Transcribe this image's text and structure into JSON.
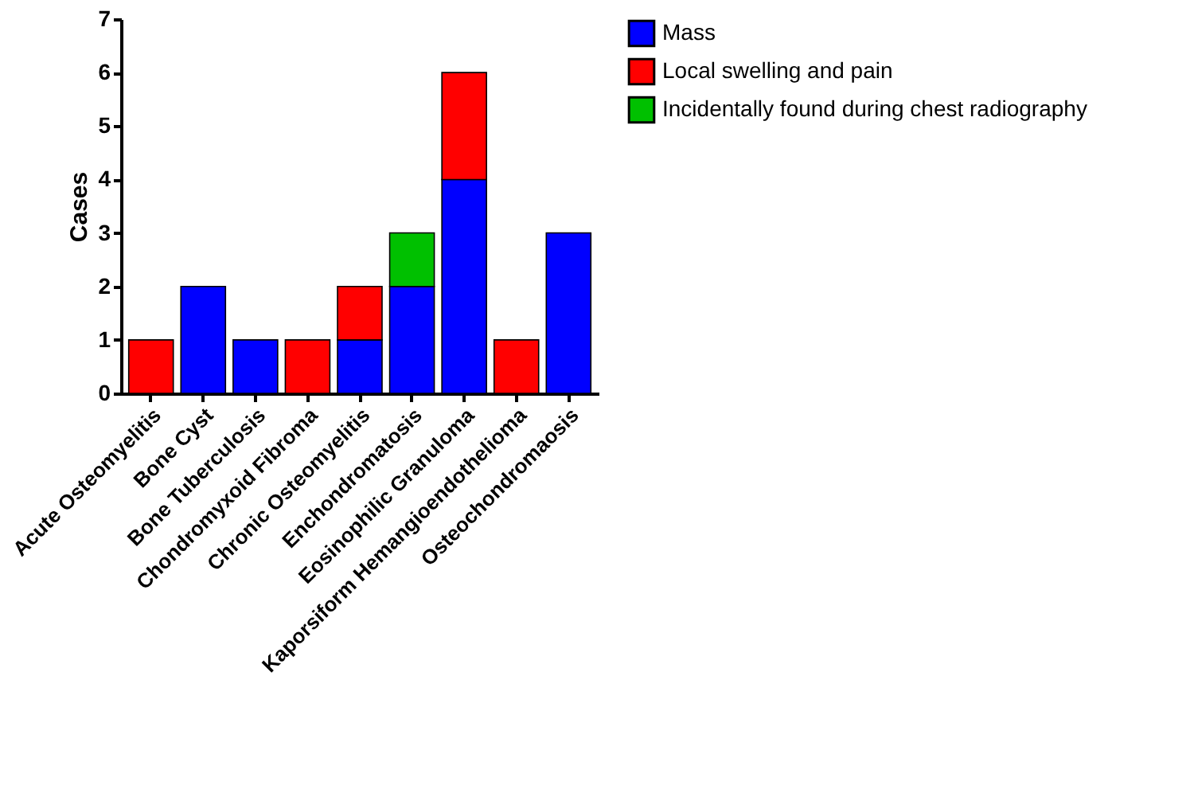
{
  "chart_data": {
    "type": "bar",
    "stacked": true,
    "ylabel": "Cases",
    "ylim": [
      0,
      7
    ],
    "yticks": [
      0,
      1,
      2,
      3,
      4,
      5,
      6,
      7
    ],
    "grid": false,
    "legend": "right",
    "categories": [
      "Acute Osteomyelitis",
      "Bone Cyst",
      "Bone Tuberculosis",
      "Chondromyxoid Fibroma",
      "Chronic Osteomyelitis",
      "Enchondromatosis",
      "Eosinophilic Granuloma",
      "Kaporsiform Hemangioendothelioma",
      "Osteochondromaosis"
    ],
    "series": [
      {
        "name": "Mass",
        "color": "#0000ff",
        "values": [
          null,
          2,
          1,
          null,
          1,
          2,
          4,
          null,
          3
        ]
      },
      {
        "name": "Local swelling and pain",
        "color": "#ff0000",
        "values": [
          1,
          null,
          null,
          1,
          1,
          null,
          2,
          1,
          null
        ]
      },
      {
        "name": "Incidentally found during chest radiography",
        "color": "#00c000",
        "values": [
          null,
          null,
          null,
          null,
          null,
          1,
          null,
          null,
          null
        ]
      }
    ]
  }
}
